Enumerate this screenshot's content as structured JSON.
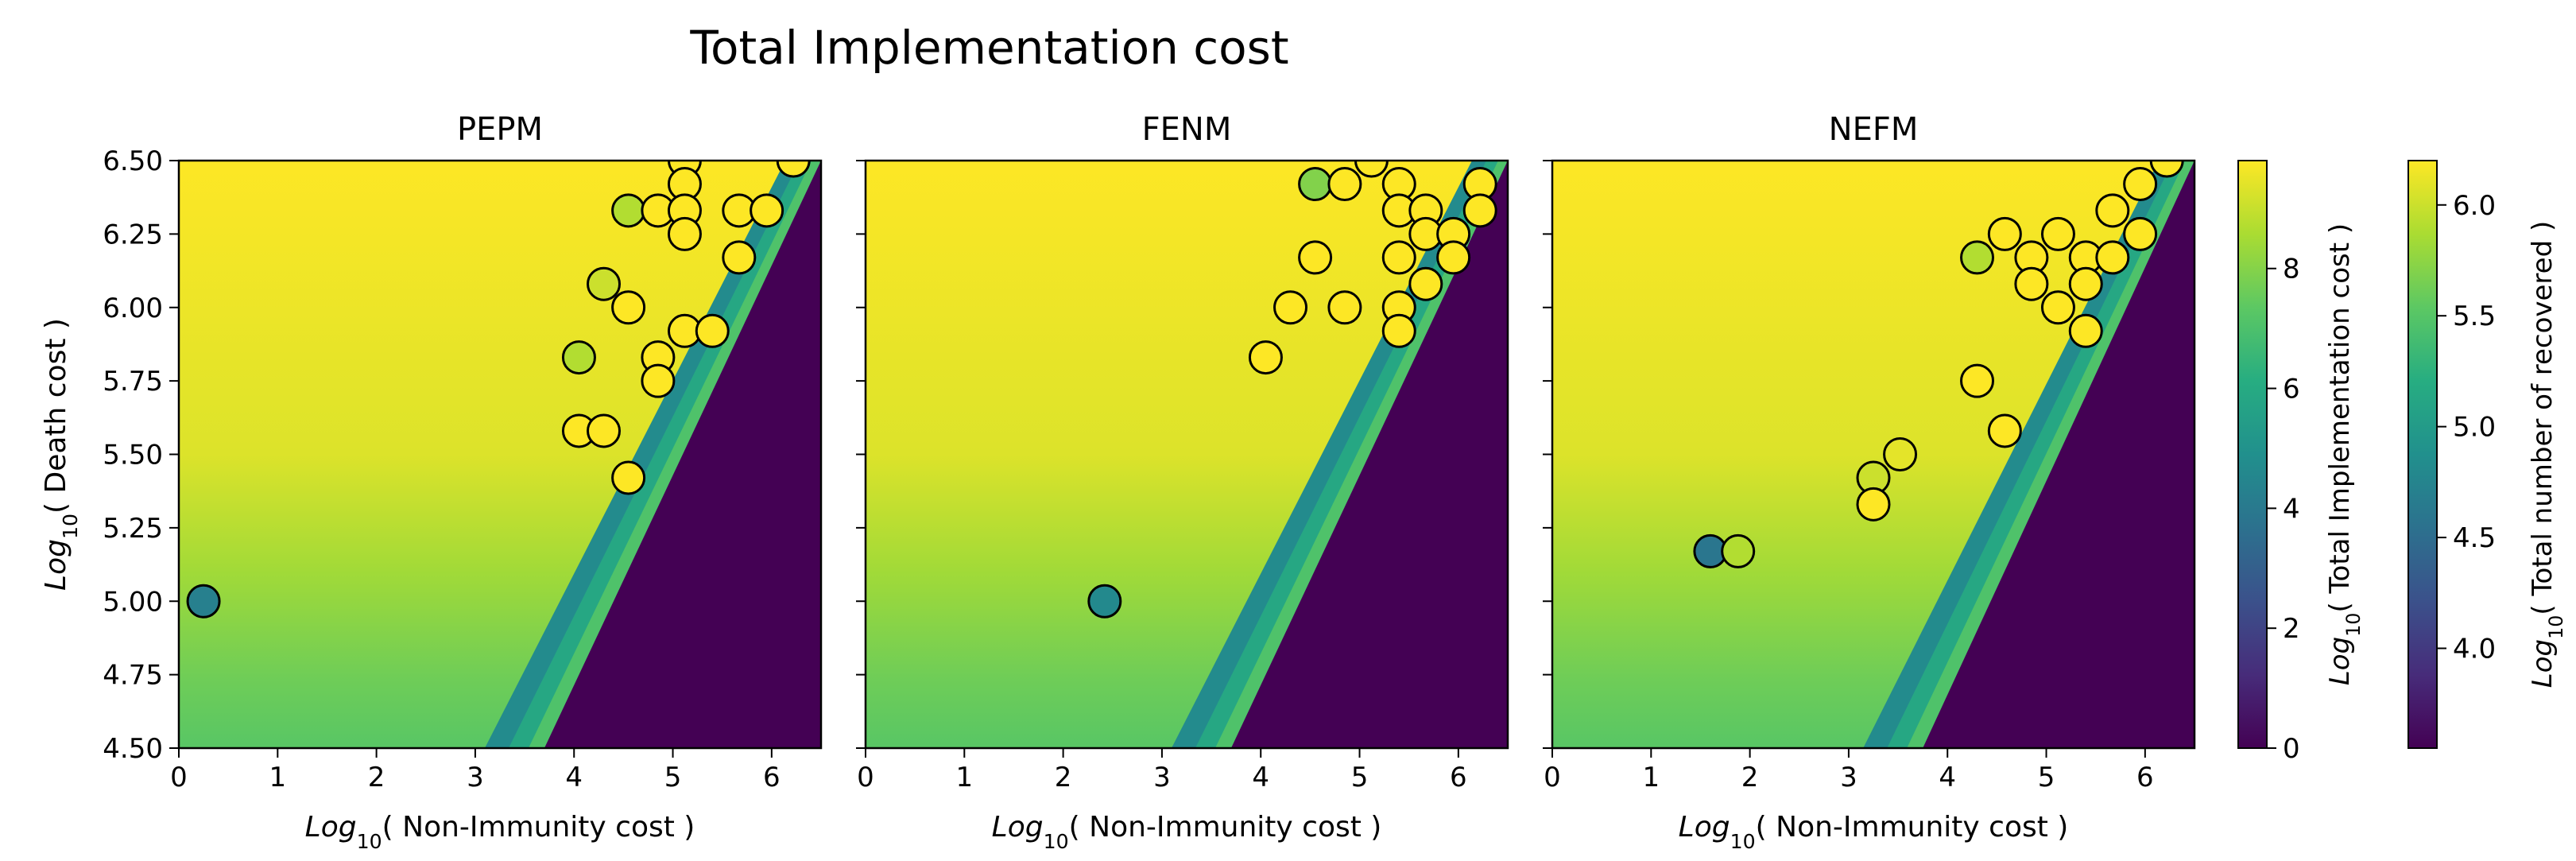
{
  "figure": {
    "title": "Total Implementation cost"
  },
  "chart_data": [
    {
      "type": "heatmap",
      "panel": "PEPM",
      "title": "PEPM",
      "xlabel": "Log10( Non-Immunity cost )",
      "ylabel": "Log10( Death cost )",
      "xlim": [
        0,
        6.5
      ],
      "ylim": [
        4.5,
        6.5
      ],
      "xticks": [
        "0",
        "1",
        "2",
        "3",
        "4",
        "5",
        "6"
      ],
      "yticks": [
        "4.50",
        "4.75",
        "5.00",
        "5.25",
        "5.50",
        "5.75",
        "6.00",
        "6.25",
        "6.50"
      ],
      "heatmap_boundary": {
        "x_at_y_4_5": 3.7,
        "x_at_y_6_5": 6.5
      },
      "scatter": [
        {
          "x": 0.25,
          "y": 5.0,
          "recovered_log10": 4.7
        },
        {
          "x": 4.05,
          "y": 5.83,
          "recovered_log10": 5.9
        },
        {
          "x": 4.05,
          "y": 5.58,
          "recovered_log10": 6.2
        },
        {
          "x": 4.3,
          "y": 5.58,
          "recovered_log10": 6.2
        },
        {
          "x": 4.3,
          "y": 6.08,
          "recovered_log10": 6.0
        },
        {
          "x": 4.55,
          "y": 6.33,
          "recovered_log10": 5.9
        },
        {
          "x": 4.55,
          "y": 6.0,
          "recovered_log10": 6.2
        },
        {
          "x": 4.55,
          "y": 5.42,
          "recovered_log10": 6.2
        },
        {
          "x": 4.85,
          "y": 6.33,
          "recovered_log10": 6.2
        },
        {
          "x": 4.85,
          "y": 5.83,
          "recovered_log10": 6.2
        },
        {
          "x": 4.85,
          "y": 5.75,
          "recovered_log10": 6.2
        },
        {
          "x": 5.12,
          "y": 6.5,
          "recovered_log10": 6.2
        },
        {
          "x": 5.12,
          "y": 6.42,
          "recovered_log10": 6.2
        },
        {
          "x": 5.12,
          "y": 6.33,
          "recovered_log10": 6.2
        },
        {
          "x": 5.12,
          "y": 6.25,
          "recovered_log10": 6.2
        },
        {
          "x": 5.12,
          "y": 5.92,
          "recovered_log10": 6.2
        },
        {
          "x": 5.4,
          "y": 5.92,
          "recovered_log10": 6.2
        },
        {
          "x": 5.67,
          "y": 6.33,
          "recovered_log10": 6.2
        },
        {
          "x": 5.67,
          "y": 6.17,
          "recovered_log10": 6.2
        },
        {
          "x": 5.95,
          "y": 6.33,
          "recovered_log10": 6.2
        },
        {
          "x": 6.22,
          "y": 6.5,
          "recovered_log10": 6.2
        }
      ]
    },
    {
      "type": "heatmap",
      "panel": "FENM",
      "title": "FENM",
      "xlabel": "Log10( Non-Immunity cost )",
      "ylabel": "",
      "xlim": [
        0,
        6.5
      ],
      "ylim": [
        4.5,
        6.5
      ],
      "xticks": [
        "0",
        "1",
        "2",
        "3",
        "4",
        "5",
        "6"
      ],
      "heatmap_boundary": {
        "x_at_y_4_5": 3.7,
        "x_at_y_6_5": 6.5
      },
      "scatter": [
        {
          "x": 2.42,
          "y": 5.0,
          "recovered_log10": 4.8
        },
        {
          "x": 4.05,
          "y": 5.83,
          "recovered_log10": 6.2
        },
        {
          "x": 4.3,
          "y": 6.0,
          "recovered_log10": 6.2
        },
        {
          "x": 4.55,
          "y": 6.42,
          "recovered_log10": 5.7
        },
        {
          "x": 4.55,
          "y": 6.17,
          "recovered_log10": 6.2
        },
        {
          "x": 4.85,
          "y": 6.42,
          "recovered_log10": 6.2
        },
        {
          "x": 4.85,
          "y": 6.0,
          "recovered_log10": 6.2
        },
        {
          "x": 5.12,
          "y": 6.5,
          "recovered_log10": 6.2
        },
        {
          "x": 5.4,
          "y": 6.42,
          "recovered_log10": 6.2
        },
        {
          "x": 5.4,
          "y": 6.33,
          "recovered_log10": 6.2
        },
        {
          "x": 5.4,
          "y": 6.17,
          "recovered_log10": 6.2
        },
        {
          "x": 5.4,
          "y": 6.0,
          "recovered_log10": 6.2
        },
        {
          "x": 5.4,
          "y": 5.92,
          "recovered_log10": 6.2
        },
        {
          "x": 5.67,
          "y": 6.33,
          "recovered_log10": 6.2
        },
        {
          "x": 5.67,
          "y": 6.25,
          "recovered_log10": 6.2
        },
        {
          "x": 5.67,
          "y": 6.08,
          "recovered_log10": 6.2
        },
        {
          "x": 5.95,
          "y": 6.25,
          "recovered_log10": 6.2
        },
        {
          "x": 5.95,
          "y": 6.17,
          "recovered_log10": 6.2
        },
        {
          "x": 6.22,
          "y": 6.42,
          "recovered_log10": 6.2
        },
        {
          "x": 6.22,
          "y": 6.33,
          "recovered_log10": 6.2
        }
      ]
    },
    {
      "type": "heatmap",
      "panel": "NEFM",
      "title": "NEFM",
      "xlabel": "Log10( Non-Immunity cost )",
      "ylabel": "",
      "xlim": [
        0,
        6.5
      ],
      "ylim": [
        4.5,
        6.5
      ],
      "xticks": [
        "0",
        "1",
        "2",
        "3",
        "4",
        "5",
        "6"
      ],
      "heatmap_boundary": {
        "x_at_y_4_5": 3.75,
        "x_at_y_6_5": 6.5
      },
      "scatter": [
        {
          "x": 1.6,
          "y": 5.17,
          "recovered_log10": 4.6
        },
        {
          "x": 1.88,
          "y": 5.17,
          "recovered_log10": 5.9
        },
        {
          "x": 3.25,
          "y": 5.42,
          "recovered_log10": 6.0
        },
        {
          "x": 3.25,
          "y": 5.33,
          "recovered_log10": 6.2
        },
        {
          "x": 3.52,
          "y": 5.5,
          "recovered_log10": 6.1
        },
        {
          "x": 4.3,
          "y": 6.17,
          "recovered_log10": 5.9
        },
        {
          "x": 4.3,
          "y": 5.75,
          "recovered_log10": 6.2
        },
        {
          "x": 4.58,
          "y": 6.25,
          "recovered_log10": 6.2
        },
        {
          "x": 4.58,
          "y": 5.58,
          "recovered_log10": 6.2
        },
        {
          "x": 4.85,
          "y": 6.17,
          "recovered_log10": 6.2
        },
        {
          "x": 4.85,
          "y": 6.08,
          "recovered_log10": 6.2
        },
        {
          "x": 5.12,
          "y": 6.25,
          "recovered_log10": 6.2
        },
        {
          "x": 5.12,
          "y": 6.0,
          "recovered_log10": 6.2
        },
        {
          "x": 5.4,
          "y": 6.17,
          "recovered_log10": 6.2
        },
        {
          "x": 5.4,
          "y": 6.08,
          "recovered_log10": 6.2
        },
        {
          "x": 5.4,
          "y": 5.92,
          "recovered_log10": 6.2
        },
        {
          "x": 5.67,
          "y": 6.33,
          "recovered_log10": 6.2
        },
        {
          "x": 5.67,
          "y": 6.17,
          "recovered_log10": 6.2
        },
        {
          "x": 5.95,
          "y": 6.42,
          "recovered_log10": 6.2
        },
        {
          "x": 5.95,
          "y": 6.25,
          "recovered_log10": 6.2
        },
        {
          "x": 6.22,
          "y": 6.5,
          "recovered_log10": 6.2
        }
      ]
    }
  ],
  "colorbars": [
    {
      "label": "Log10( Total Implementation cost )",
      "range": [
        0,
        9.8
      ],
      "ticks": [
        "0",
        "2",
        "4",
        "6",
        "8"
      ],
      "colormap": "viridis"
    },
    {
      "label": "Log10( Total number of recovered )",
      "range": [
        3.55,
        6.2
      ],
      "ticks": [
        "4.0",
        "4.5",
        "5.0",
        "5.5",
        "6.0"
      ],
      "colormap": "viridis"
    }
  ],
  "colors": {
    "viridis_low": "#440154",
    "viridis_high": "#fde725"
  }
}
